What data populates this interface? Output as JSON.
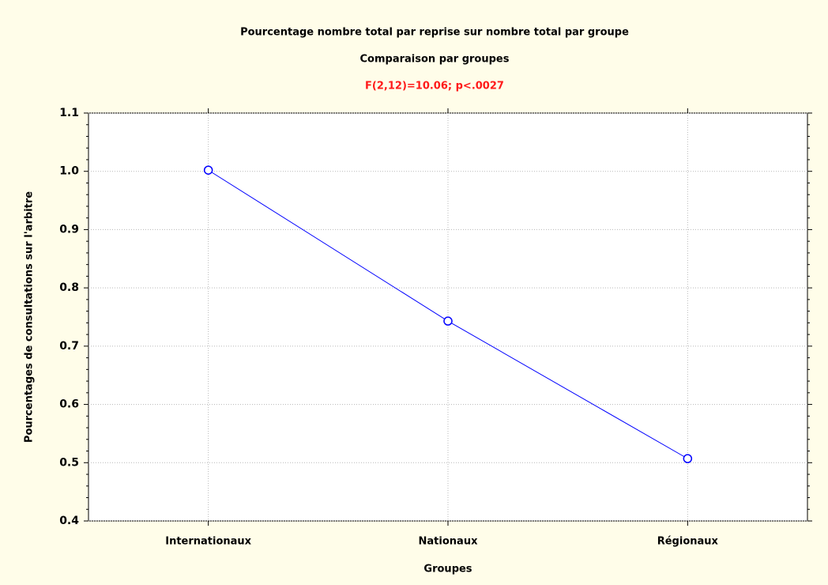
{
  "chart_data": {
    "type": "line",
    "title": "Pourcentage nombre total par reprise sur nombre total par groupe",
    "subtitle": "Comparaison par groupes",
    "annotation": "F(2,12)=10.06; p<.0027",
    "x_label": "Groupes",
    "y_label": "Pourcentages de consultations sur l'arbitre",
    "categories": [
      "Internationaux",
      "Nationaux",
      "Régionaux"
    ],
    "values": [
      1.002,
      0.743,
      0.507
    ],
    "color": "#0000ff",
    "ylim": [
      0.4,
      1.1
    ],
    "yticks": [
      0.4,
      0.5,
      0.6,
      0.7,
      0.8,
      0.9,
      {
        "value": 1,
        "label": "1.0"
      },
      1.1
    ],
    "grid": true
  }
}
